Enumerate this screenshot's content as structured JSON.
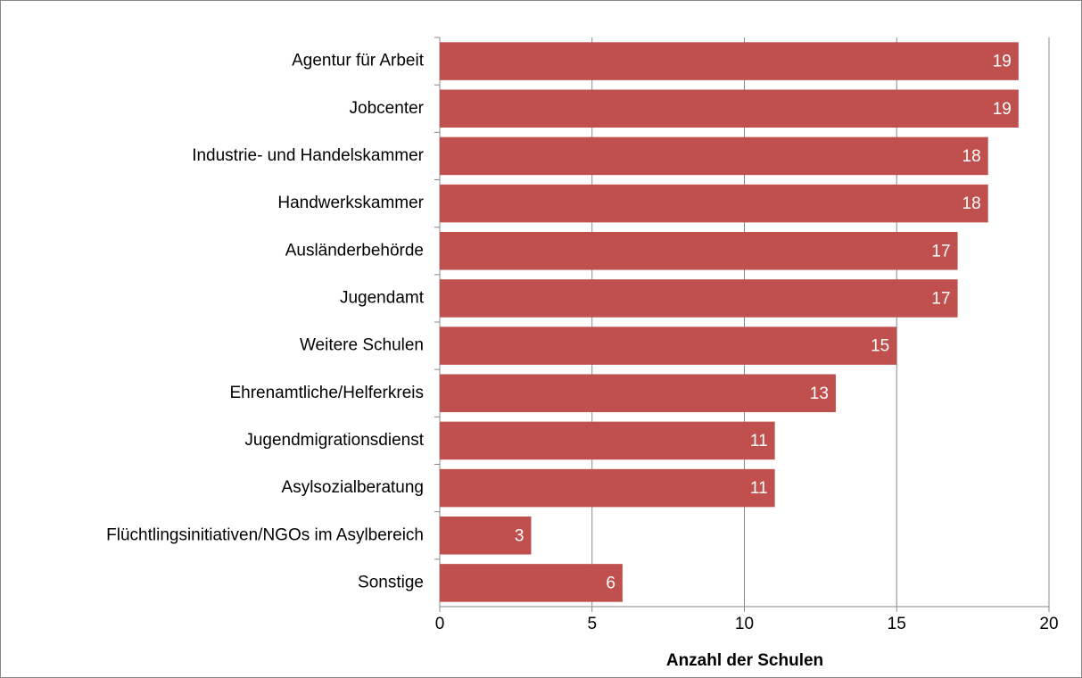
{
  "chart_data": {
    "type": "bar",
    "orientation": "horizontal",
    "categories": [
      "Agentur für Arbeit",
      "Jobcenter",
      "Industrie- und Handelskammer",
      "Handwerkskammer",
      "Ausländerbehörde",
      "Jugendamt",
      "Weitere Schulen",
      "Ehrenamtliche/Helferkreis",
      "Jugendmigrationsdienst",
      "Asylsozialberatung",
      "Flüchtlingsinitiativen/NGOs im Asylbereich",
      "Sonstige"
    ],
    "values": [
      19,
      19,
      18,
      18,
      17,
      17,
      15,
      13,
      11,
      11,
      3,
      6
    ],
    "color": "#c0504d",
    "xlabel": "Anzahl der Schulen",
    "xlim": [
      0,
      20
    ],
    "xticks": [
      0,
      5,
      10,
      15,
      20
    ],
    "grid": true
  }
}
